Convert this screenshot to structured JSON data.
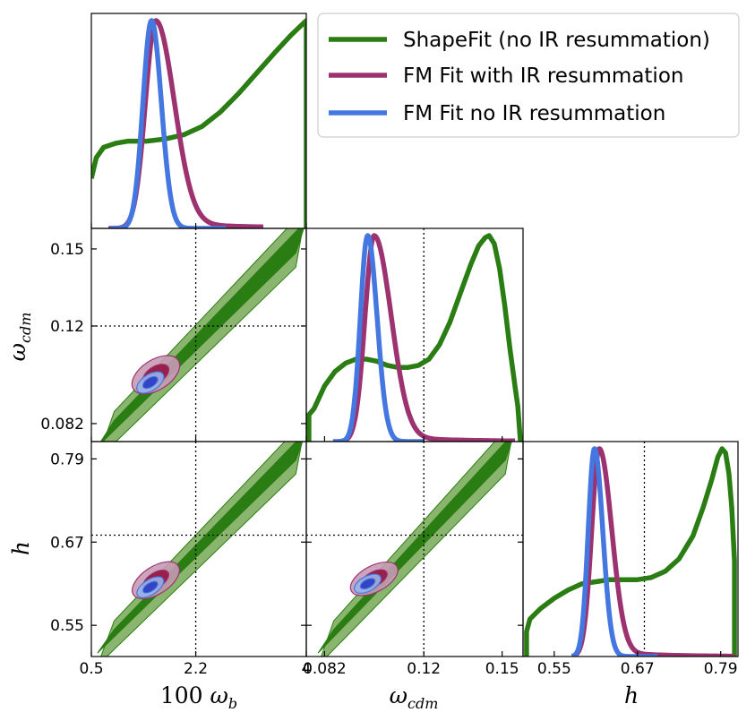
{
  "chart_data": {
    "type": "corner-plot",
    "parameters": [
      {
        "key": "wb",
        "label": "100 ω_b",
        "label_main": "100 ",
        "label_symbol": "ω",
        "label_sub": "b",
        "range": [
          0.5,
          4
        ],
        "ticks": [
          0.5,
          2.2,
          4
        ],
        "tick_labels": [
          "0.5",
          "2.2",
          "4"
        ],
        "fiducial": 2.2
      },
      {
        "key": "wc",
        "label": "ω_cdm",
        "label_main": "",
        "label_symbol": "ω",
        "label_sub": "cdm",
        "range": [
          0.075,
          0.158
        ],
        "ticks": [
          0.082,
          0.12,
          0.15
        ],
        "tick_labels": [
          "0.082",
          "0.12",
          "0.15"
        ],
        "fiducial": 0.12
      },
      {
        "key": "h",
        "label": "h",
        "label_main": "",
        "label_symbol": "h",
        "label_sub": "",
        "range": [
          0.505,
          0.815
        ],
        "ticks": [
          0.55,
          0.67,
          0.79
        ],
        "tick_labels": [
          "0.55",
          "0.67",
          "0.79"
        ],
        "fiducial": 0.68
      }
    ],
    "legend": {
      "position": "top-right",
      "entries": [
        {
          "label": "ShapeFit (no IR resummation)",
          "color": "#2a7d12"
        },
        {
          "label": "FM Fit with IR resummation",
          "color": "#9c3370"
        },
        {
          "label": "FM Fit no IR resummation",
          "color": "#4477e0"
        }
      ]
    },
    "series": [
      {
        "name": "ShapeFit (no IR resummation)",
        "color": "#2a7d12",
        "color_light": "#8ab56e",
        "color_dark": "#2a7d12",
        "marginals": {
          "wb": [
            [
              0.5,
              0.24
            ],
            [
              0.58,
              0.34
            ],
            [
              0.7,
              0.39
            ],
            [
              0.9,
              0.41
            ],
            [
              1.1,
              0.42
            ],
            [
              1.4,
              0.42
            ],
            [
              1.7,
              0.43
            ],
            [
              2.0,
              0.45
            ],
            [
              2.3,
              0.49
            ],
            [
              2.6,
              0.56
            ],
            [
              2.9,
              0.65
            ],
            [
              3.2,
              0.75
            ],
            [
              3.5,
              0.85
            ],
            [
              3.75,
              0.93
            ],
            [
              4.0,
              1.0
            ],
            [
              4.0,
              0
            ]
          ],
          "wc": [
            [
              0.076,
              0
            ],
            [
              0.076,
              0.13
            ],
            [
              0.078,
              0.16
            ],
            [
              0.082,
              0.27
            ],
            [
              0.086,
              0.34
            ],
            [
              0.09,
              0.38
            ],
            [
              0.094,
              0.4
            ],
            [
              0.098,
              0.4
            ],
            [
              0.102,
              0.39
            ],
            [
              0.106,
              0.37
            ],
            [
              0.11,
              0.36
            ],
            [
              0.114,
              0.36
            ],
            [
              0.118,
              0.37
            ],
            [
              0.122,
              0.4
            ],
            [
              0.126,
              0.47
            ],
            [
              0.13,
              0.58
            ],
            [
              0.134,
              0.72
            ],
            [
              0.138,
              0.86
            ],
            [
              0.141,
              0.95
            ],
            [
              0.1435,
              0.99
            ],
            [
              0.145,
              1.0
            ],
            [
              0.147,
              0.96
            ],
            [
              0.149,
              0.84
            ],
            [
              0.151,
              0.66
            ],
            [
              0.153,
              0.45
            ],
            [
              0.155,
              0.26
            ],
            [
              0.156,
              0.17
            ],
            [
              0.157,
              0.0
            ]
          ],
          "h": [
            [
              0.51,
              0
            ],
            [
              0.51,
              0.12
            ],
            [
              0.515,
              0.18
            ],
            [
              0.53,
              0.23
            ],
            [
              0.55,
              0.28
            ],
            [
              0.57,
              0.32
            ],
            [
              0.59,
              0.35
            ],
            [
              0.61,
              0.36
            ],
            [
              0.63,
              0.37
            ],
            [
              0.65,
              0.37
            ],
            [
              0.67,
              0.37
            ],
            [
              0.69,
              0.38
            ],
            [
              0.71,
              0.41
            ],
            [
              0.73,
              0.47
            ],
            [
              0.75,
              0.58
            ],
            [
              0.765,
              0.72
            ],
            [
              0.777,
              0.85
            ],
            [
              0.786,
              0.96
            ],
            [
              0.792,
              1.0
            ],
            [
              0.797,
              0.98
            ],
            [
              0.802,
              0.88
            ],
            [
              0.806,
              0.72
            ],
            [
              0.81,
              0.46
            ],
            [
              0.81,
              0.0
            ]
          ]
        },
        "contours": {
          "wb-wc": {
            "p0": [
              0.6,
              0.079
            ],
            "p1": [
              4.0,
              0.155
            ],
            "w68": 0.006,
            "w95": 0.011,
            "xcut": [
              0.6,
              4.0
            ]
          },
          "wb-h": {
            "p0": [
              0.6,
              0.53
            ],
            "p1": [
              4.0,
              0.81
            ],
            "w68": 0.02,
            "w95": 0.038,
            "xcut": [
              0.6,
              4.0
            ]
          },
          "wc-h": {
            "p0": [
              0.0795,
              0.53
            ],
            "p1": [
              0.155,
              0.81
            ],
            "w68": 0.02,
            "w95": 0.038,
            "xcut": [
              0.0795,
              0.155
            ]
          }
        }
      },
      {
        "name": "FM Fit with IR resummation",
        "color": "#9c3370",
        "color_light": "#c69ab5",
        "color_dark": "#991f4d",
        "marginals": {
          "wb": {
            "mu": 1.55,
            "sl": 0.17,
            "sr": 0.3,
            "tail": 0.03,
            "lo": 0.78,
            "hi": 3.3
          },
          "wc": {
            "mu": 0.101,
            "sl": 0.0035,
            "sr": 0.0065,
            "tail": 0.025,
            "lo": 0.088,
            "hi": 0.155
          },
          "h": {
            "mu": 0.615,
            "sl": 0.011,
            "sr": 0.018,
            "tail": 0.025,
            "lo": 0.58,
            "hi": 0.81
          }
        },
        "ellipses": {
          "wb-wc": {
            "c": [
              1.55,
              0.101
            ],
            "rx": 0.7,
            "ry": 0.0065,
            "angle": 33
          },
          "wb-h": {
            "c": [
              1.55,
              0.615
            ],
            "rx": 0.7,
            "ry": 0.022,
            "angle": 33
          },
          "wc-h": {
            "c": [
              0.101,
              0.617
            ],
            "rx": 0.016,
            "ry": 0.021,
            "angle": 28
          }
        }
      },
      {
        "name": "FM Fit no IR resummation",
        "color": "#4477e0",
        "color_light": "#99b3e8",
        "color_dark": "#3345c7",
        "marginals": {
          "wb": {
            "mu": 1.48,
            "sl": 0.14,
            "sr": 0.16,
            "tail": 0.0,
            "lo": 0.8,
            "hi": 2.7
          },
          "wc": {
            "mu": 0.0985,
            "sl": 0.0028,
            "sr": 0.0036,
            "tail": 0.0,
            "lo": 0.085,
            "hi": 0.12
          },
          "h": {
            "mu": 0.608,
            "sl": 0.009,
            "sr": 0.012,
            "tail": 0.0,
            "lo": 0.575,
            "hi": 0.7
          }
        },
        "ellipses": {
          "wb-wc": {
            "c": [
              1.46,
              0.098
            ],
            "rx": 0.4,
            "ry": 0.0035,
            "angle": 33
          },
          "wb-h": {
            "c": [
              1.46,
              0.605
            ],
            "rx": 0.4,
            "ry": 0.012,
            "angle": 33
          },
          "wc-h": {
            "c": [
              0.0985,
              0.61
            ],
            "rx": 0.009,
            "ry": 0.012,
            "angle": 28
          }
        }
      }
    ]
  }
}
